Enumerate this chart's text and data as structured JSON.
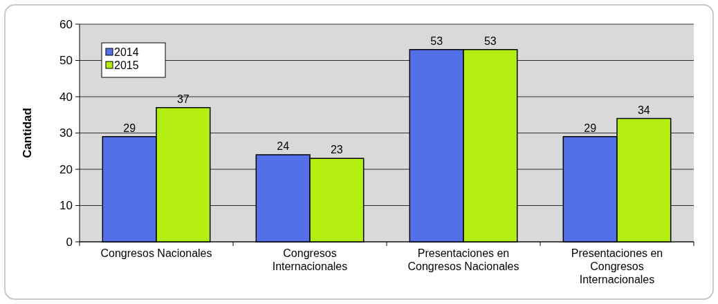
{
  "chart_data": {
    "type": "bar",
    "ylabel": "Cantidad",
    "categories": [
      "Congresos Nacionales",
      "Congresos Internacionales",
      "Presentaciones en Congresos Nacionales",
      "Presentaciones en Congresos Internacionales"
    ],
    "series": [
      {
        "name": "2014",
        "color": "#5470e8",
        "values": [
          29,
          24,
          53,
          29
        ]
      },
      {
        "name": "2015",
        "color": "#b4ee10",
        "values": [
          37,
          23,
          53,
          34
        ]
      }
    ],
    "ylim": [
      0,
      60
    ],
    "yticks": [
      0,
      10,
      20,
      30,
      40,
      50,
      60
    ],
    "grid": "y",
    "legend": "top left",
    "data_labels": true
  }
}
